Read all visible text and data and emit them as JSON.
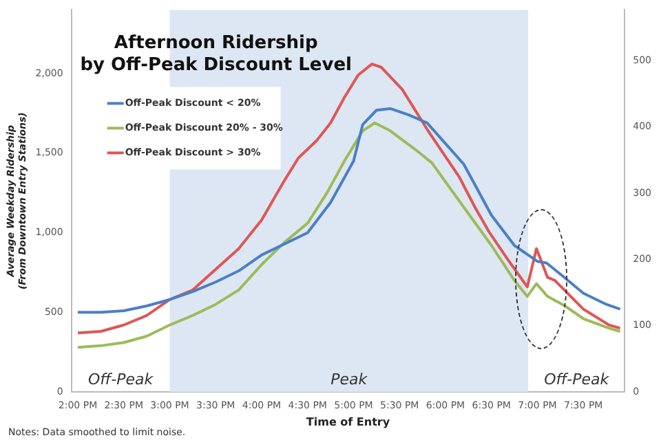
{
  "chart_data": {
    "type": "line",
    "title": "Afternoon Ridership\nby Off-Peak Discount Level",
    "xlabel": "Time of Entry",
    "ylabel": "Average Weekday Ridership\n(From Downtown Entry Stations)",
    "series": [
      {
        "name": "Off-Peak Discount < 20%",
        "color": "#4a7fc6",
        "x": [
          14,
          14.25,
          14.5,
          14.75,
          15,
          15.25,
          15.5,
          15.75,
          16,
          16.25,
          16.5,
          16.75,
          17,
          17.1,
          17.25,
          17.4,
          17.6,
          17.8,
          18,
          18.2,
          18.5,
          18.75,
          19,
          19.1,
          19.25,
          19.5,
          19.75,
          19.9
        ],
        "values": [
          500,
          500,
          510,
          540,
          580,
          630,
          690,
          760,
          860,
          930,
          1000,
          1190,
          1450,
          1680,
          1770,
          1780,
          1740,
          1690,
          1560,
          1430,
          1110,
          920,
          820,
          810,
          740,
          620,
          550,
          520
        ]
      },
      {
        "name": "Off-Peak Discount 20% - 30%",
        "color": "#9bbb59",
        "x": [
          14,
          14.25,
          14.5,
          14.75,
          15,
          15.25,
          15.5,
          15.75,
          16,
          16.25,
          16.5,
          16.71,
          16.9,
          17.1,
          17.23,
          17.4,
          17.7,
          17.85,
          18.2,
          18.5,
          18.75,
          18.89,
          18.99,
          19.11,
          19.3,
          19.5,
          19.78,
          19.9
        ],
        "values": [
          280,
          290,
          310,
          350,
          420,
          480,
          550,
          640,
          800,
          940,
          1060,
          1250,
          1450,
          1640,
          1690,
          1640,
          1510,
          1440,
          1160,
          920,
          700,
          600,
          680,
          600,
          540,
          460,
          400,
          380
        ]
      },
      {
        "name": "Off-Peak Discount > 30%",
        "color": "#e05555",
        "x": [
          14,
          14.25,
          14.5,
          14.75,
          15,
          15.25,
          15.5,
          15.75,
          16,
          16.25,
          16.4,
          16.6,
          16.75,
          16.9,
          17.05,
          17.2,
          17.3,
          17.53,
          17.8,
          18.15,
          18.33,
          18.48,
          18.68,
          18.89,
          18.99,
          19.11,
          19.19,
          19.5,
          19.78,
          19.9
        ],
        "values": [
          370,
          380,
          420,
          480,
          580,
          640,
          770,
          900,
          1080,
          1330,
          1470,
          1580,
          1690,
          1850,
          1990,
          2060,
          2040,
          1900,
          1650,
          1350,
          1150,
          1000,
          830,
          660,
          900,
          720,
          700,
          520,
          420,
          400
        ]
      }
    ],
    "xlim": [
      13.93,
      19.95
    ],
    "xticks": [
      {
        "value": 14,
        "label": "2:00 PM"
      },
      {
        "value": 14.5,
        "label": "2:30 PM"
      },
      {
        "value": 15,
        "label": "3:00 PM"
      },
      {
        "value": 15.5,
        "label": "3:30 PM"
      },
      {
        "value": 16,
        "label": "4:00 PM"
      },
      {
        "value": 16.5,
        "label": "4:30 PM"
      },
      {
        "value": 17,
        "label": "5:00 PM"
      },
      {
        "value": 17.5,
        "label": "5:30 PM"
      },
      {
        "value": 18,
        "label": "6:00 PM"
      },
      {
        "value": 18.5,
        "label": "6:30 PM"
      },
      {
        "value": 19,
        "label": "7:00 PM"
      },
      {
        "value": 19.5,
        "label": "7:30 PM"
      }
    ],
    "ylim": [
      0,
      2400
    ],
    "yticks": [
      0,
      {
        "value": 500,
        "label": "500"
      },
      {
        "value": 1000,
        "label": "1,000"
      },
      {
        "value": 1500,
        "label": "1,500"
      },
      {
        "value": 2000,
        "label": "2,000"
      }
    ],
    "y2lim": [
      0,
      577
    ],
    "y2ticks": [
      0,
      100,
      200,
      300,
      400,
      500
    ],
    "bands": [
      {
        "axis": "x",
        "from": 15,
        "to": 18.9,
        "label": "Peak",
        "color": "#dde7f3"
      }
    ],
    "annotations": [
      "Off-Peak",
      "Off-Peak",
      "Notes: Data smoothed to limit noise."
    ],
    "legend": "top left",
    "grid": false,
    "marker": "none",
    "line_style": "solid"
  }
}
